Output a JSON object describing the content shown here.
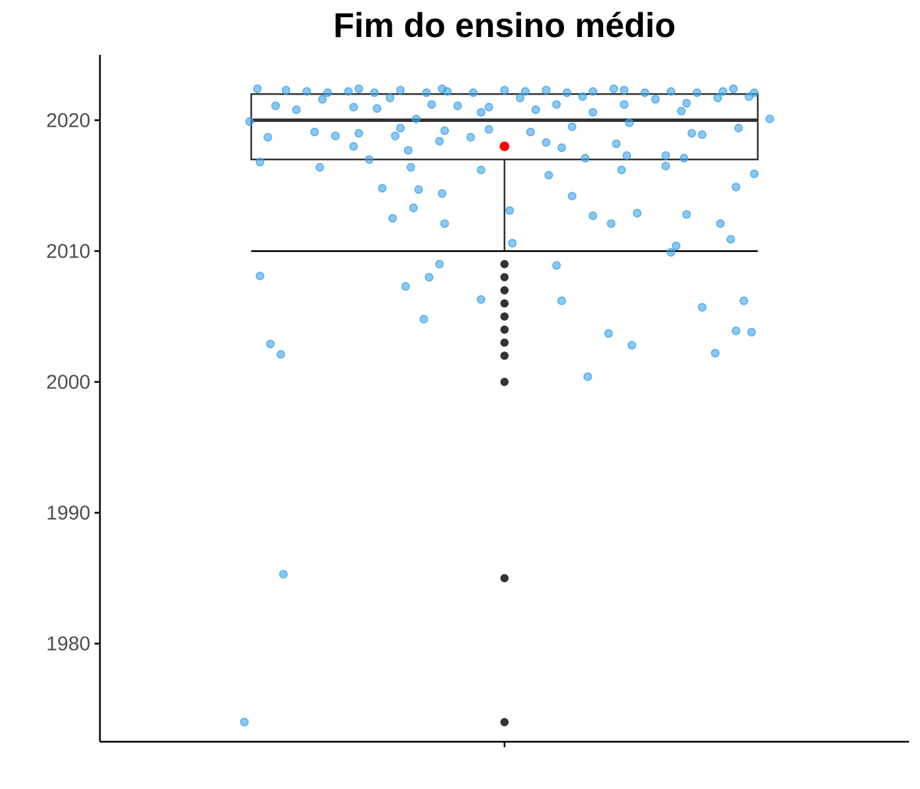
{
  "chart_data": {
    "type": "box",
    "title": "Fim do ensino médio",
    "xlabel": "",
    "ylabel": "",
    "ylim": [
      1972.5,
      2025
    ],
    "y_ticks": [
      1980,
      1990,
      2000,
      2010,
      2020
    ],
    "x_ticks": [
      ""
    ],
    "grid": false,
    "legend": "none",
    "colors": {
      "jitter_points": "#3ca3e8",
      "mean_point": "#ff0000",
      "box_line": "#333333",
      "outliers": "#333333",
      "axis": "#000000"
    },
    "box": {
      "whisker_low": 2010,
      "q1": 2017,
      "median": 2020,
      "q3": 2022,
      "whisker_high": 2022
    },
    "mean": 2018,
    "outliers": [
      2009,
      2008,
      2007,
      2006,
      2005,
      2004,
      2003,
      2002,
      2000,
      1985,
      1974
    ],
    "jitter_points": [
      {
        "x": -0.84,
        "y": 2022.3
      },
      {
        "x": -0.76,
        "y": 2022.2
      },
      {
        "x": -0.68,
        "y": 2022.1
      },
      {
        "x": -0.6,
        "y": 2022.2
      },
      {
        "x": -0.5,
        "y": 2022.1
      },
      {
        "x": -0.4,
        "y": 2022.3
      },
      {
        "x": -0.3,
        "y": 2022.1
      },
      {
        "x": -0.22,
        "y": 2022.2
      },
      {
        "x": -0.12,
        "y": 2022.1
      },
      {
        "x": 0.0,
        "y": 2022.3
      },
      {
        "x": 0.08,
        "y": 2022.2
      },
      {
        "x": 0.16,
        "y": 2022.3
      },
      {
        "x": 0.24,
        "y": 2022.1
      },
      {
        "x": 0.34,
        "y": 2022.2
      },
      {
        "x": 0.46,
        "y": 2022.3
      },
      {
        "x": 0.54,
        "y": 2022.1
      },
      {
        "x": 0.64,
        "y": 2022.2
      },
      {
        "x": 0.74,
        "y": 2022.1
      },
      {
        "x": 0.84,
        "y": 2022.2
      },
      {
        "x": 0.96,
        "y": 2022.1
      },
      {
        "x": -0.95,
        "y": 2022.4
      },
      {
        "x": -0.56,
        "y": 2022.4
      },
      {
        "x": 0.88,
        "y": 2022.4
      },
      {
        "x": 0.42,
        "y": 2022.4
      },
      {
        "x": -0.24,
        "y": 2022.4
      },
      {
        "x": -0.88,
        "y": 2021.1
      },
      {
        "x": -0.7,
        "y": 2021.6
      },
      {
        "x": -0.58,
        "y": 2021.0
      },
      {
        "x": -0.44,
        "y": 2021.7
      },
      {
        "x": -0.28,
        "y": 2021.2
      },
      {
        "x": -0.18,
        "y": 2021.1
      },
      {
        "x": -0.06,
        "y": 2021.0
      },
      {
        "x": 0.06,
        "y": 2021.7
      },
      {
        "x": 0.2,
        "y": 2021.2
      },
      {
        "x": 0.3,
        "y": 2021.8
      },
      {
        "x": 0.46,
        "y": 2021.2
      },
      {
        "x": 0.58,
        "y": 2021.6
      },
      {
        "x": 0.7,
        "y": 2021.3
      },
      {
        "x": 0.82,
        "y": 2021.7
      },
      {
        "x": 0.94,
        "y": 2021.8
      },
      {
        "x": -0.8,
        "y": 2020.8
      },
      {
        "x": -0.49,
        "y": 2020.9
      },
      {
        "x": -0.34,
        "y": 2020.1
      },
      {
        "x": -0.09,
        "y": 2020.6
      },
      {
        "x": 0.12,
        "y": 2020.8
      },
      {
        "x": 0.34,
        "y": 2020.6
      },
      {
        "x": 0.68,
        "y": 2020.7
      },
      {
        "x": -0.98,
        "y": 2019.9
      },
      {
        "x": -0.73,
        "y": 2019.1
      },
      {
        "x": -0.56,
        "y": 2019.0
      },
      {
        "x": -0.4,
        "y": 2019.4
      },
      {
        "x": -0.23,
        "y": 2019.2
      },
      {
        "x": -0.06,
        "y": 2019.3
      },
      {
        "x": 0.1,
        "y": 2019.1
      },
      {
        "x": 0.26,
        "y": 2019.5
      },
      {
        "x": 0.48,
        "y": 2019.8
      },
      {
        "x": 0.72,
        "y": 2019.0
      },
      {
        "x": 0.9,
        "y": 2019.4
      },
      {
        "x": 1.02,
        "y": 2020.1
      },
      {
        "x": -0.91,
        "y": 2018.7
      },
      {
        "x": -0.65,
        "y": 2018.8
      },
      {
        "x": -0.42,
        "y": 2018.8
      },
      {
        "x": -0.25,
        "y": 2018.4
      },
      {
        "x": -0.13,
        "y": 2018.7
      },
      {
        "x": 0.16,
        "y": 2018.3
      },
      {
        "x": 0.43,
        "y": 2018.2
      },
      {
        "x": 0.76,
        "y": 2018.9
      },
      {
        "x": -0.58,
        "y": 2018.0
      },
      {
        "x": -0.37,
        "y": 2017.7
      },
      {
        "x": 0.22,
        "y": 2017.9
      },
      {
        "x": 0.47,
        "y": 2017.3
      },
      {
        "x": 0.62,
        "y": 2017.3
      },
      {
        "x": -0.52,
        "y": 2017.0
      },
      {
        "x": 0.31,
        "y": 2017.1
      },
      {
        "x": 0.69,
        "y": 2017.1
      },
      {
        "x": -0.94,
        "y": 2016.8
      },
      {
        "x": -0.71,
        "y": 2016.4
      },
      {
        "x": -0.36,
        "y": 2016.4
      },
      {
        "x": -0.09,
        "y": 2016.2
      },
      {
        "x": 0.45,
        "y": 2016.2
      },
      {
        "x": 0.62,
        "y": 2016.5
      },
      {
        "x": 0.96,
        "y": 2015.9
      },
      {
        "x": 0.17,
        "y": 2015.8
      },
      {
        "x": -0.47,
        "y": 2014.8
      },
      {
        "x": -0.33,
        "y": 2014.7
      },
      {
        "x": -0.24,
        "y": 2014.4
      },
      {
        "x": 0.26,
        "y": 2014.2
      },
      {
        "x": 0.89,
        "y": 2014.9
      },
      {
        "x": -0.35,
        "y": 2013.3
      },
      {
        "x": 0.02,
        "y": 2013.1
      },
      {
        "x": 0.34,
        "y": 2012.7
      },
      {
        "x": 0.51,
        "y": 2012.9
      },
      {
        "x": 0.7,
        "y": 2012.8
      },
      {
        "x": -0.43,
        "y": 2012.5
      },
      {
        "x": -0.23,
        "y": 2012.1
      },
      {
        "x": 0.41,
        "y": 2012.1
      },
      {
        "x": 0.83,
        "y": 2012.1
      },
      {
        "x": 0.87,
        "y": 2010.9
      },
      {
        "x": 0.03,
        "y": 2010.6
      },
      {
        "x": 0.66,
        "y": 2010.4
      },
      {
        "x": 0.64,
        "y": 2009.9
      },
      {
        "x": -0.25,
        "y": 2009.0
      },
      {
        "x": 0.2,
        "y": 2008.9
      },
      {
        "x": -0.94,
        "y": 2008.1
      },
      {
        "x": -0.29,
        "y": 2008.0
      },
      {
        "x": -0.38,
        "y": 2007.3
      },
      {
        "x": -0.09,
        "y": 2006.3
      },
      {
        "x": 0.22,
        "y": 2006.2
      },
      {
        "x": 0.76,
        "y": 2005.7
      },
      {
        "x": 0.92,
        "y": 2006.2
      },
      {
        "x": -0.31,
        "y": 2004.8
      },
      {
        "x": 0.4,
        "y": 2003.7
      },
      {
        "x": 0.89,
        "y": 2003.9
      },
      {
        "x": 0.95,
        "y": 2003.8
      },
      {
        "x": -0.9,
        "y": 2002.9
      },
      {
        "x": -0.86,
        "y": 2002.1
      },
      {
        "x": 0.49,
        "y": 2002.8
      },
      {
        "x": 0.81,
        "y": 2002.2
      },
      {
        "x": 0.32,
        "y": 2000.4
      },
      {
        "x": -0.85,
        "y": 1985.3
      },
      {
        "x": -1.0,
        "y": 1974.0
      }
    ]
  }
}
